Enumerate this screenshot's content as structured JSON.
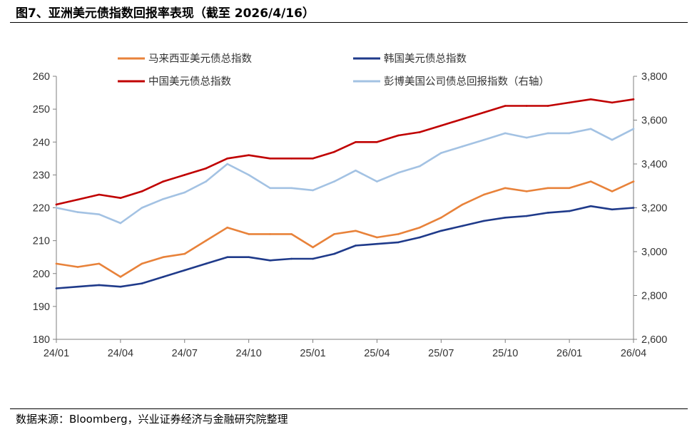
{
  "header": {
    "title": "图7、亚洲美元债指数回报率表现（截至 2026/4/16）"
  },
  "footer": {
    "source": "数据来源：Bloomberg，兴业证券经济与金融研究院整理"
  },
  "chart_data": {
    "type": "line",
    "x": [
      "24/01",
      "24/02",
      "24/03",
      "24/04",
      "24/05",
      "24/06",
      "24/07",
      "24/08",
      "24/09",
      "24/10",
      "24/11",
      "24/12",
      "25/01",
      "25/02",
      "25/03",
      "25/04",
      "25/05",
      "25/06",
      "25/07",
      "25/08",
      "25/09",
      "25/10",
      "25/11",
      "25/12",
      "26/01",
      "26/02",
      "26/03",
      "26/04"
    ],
    "x_ticks": [
      "24/01",
      "24/04",
      "24/07",
      "24/10",
      "25/01",
      "25/04",
      "25/07",
      "25/10",
      "26/01",
      "26/04"
    ],
    "y_left": {
      "min": 180,
      "max": 260,
      "step": 10,
      "ticks": [
        "180",
        "190",
        "200",
        "210",
        "220",
        "230",
        "240",
        "250",
        "260"
      ]
    },
    "y_right": {
      "min": 2600,
      "max": 3800,
      "step": 200,
      "ticks": [
        "2,600",
        "2,800",
        "3,000",
        "3,200",
        "3,400",
        "3,600",
        "3,800"
      ]
    },
    "grid": false,
    "legend": "top",
    "series": [
      {
        "name": "马来西亚美元债总指数",
        "axis": "left",
        "color": "#E8823A",
        "values": [
          203,
          202,
          203,
          199,
          203,
          205,
          206,
          210,
          214,
          212,
          212,
          212,
          208,
          212,
          213,
          211,
          212,
          214,
          217,
          221,
          224,
          226,
          225,
          226,
          226,
          228,
          225,
          228
        ]
      },
      {
        "name": "韩国美元债总指数",
        "axis": "left",
        "color": "#1F3A8A",
        "values": [
          195.5,
          196,
          196.5,
          196,
          197,
          199,
          201,
          203,
          205,
          205,
          204,
          204.5,
          204.5,
          206,
          208.5,
          209,
          209.5,
          211,
          213,
          214.5,
          216,
          217,
          217.5,
          218.5,
          219,
          220.5,
          219.5,
          220
        ]
      },
      {
        "name": "中国美元债总指数",
        "axis": "left",
        "color": "#C00000",
        "values": [
          221,
          222.5,
          224,
          223,
          225,
          228,
          230,
          232,
          235,
          236,
          235,
          235,
          235,
          237,
          240,
          240,
          242,
          243,
          245,
          247,
          249,
          251,
          251,
          251,
          252,
          253,
          252,
          253
        ]
      },
      {
        "name": "彭博美国公司债总回报指数（右轴）",
        "axis": "right",
        "color": "#A3C2E3",
        "values": [
          3200,
          3180,
          3170,
          3130,
          3200,
          3240,
          3270,
          3320,
          3400,
          3350,
          3290,
          3290,
          3280,
          3320,
          3370,
          3320,
          3360,
          3390,
          3450,
          3480,
          3510,
          3540,
          3520,
          3540,
          3540,
          3560,
          3510,
          3560
        ]
      }
    ]
  }
}
